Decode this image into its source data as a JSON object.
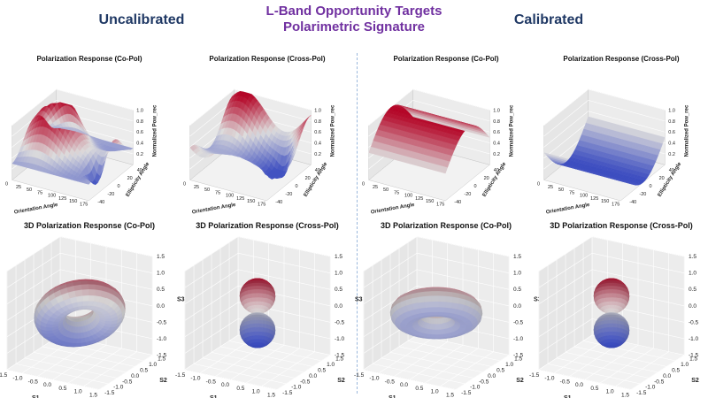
{
  "header": {
    "title_line1": "L-Band Opportunity Targets",
    "title_line2": "Polarimetric  Signature",
    "uncalibrated_label": "Uncalibrated",
    "calibrated_label": "Calibrated"
  },
  "colors": {
    "title": "#7030a0",
    "section_label": "#1f3864",
    "colormap_low": "#3b4cc0",
    "colormap_mid": "#dddcdc",
    "colormap_high": "#b40426",
    "divider": "#9bb8dc"
  },
  "chart_data": [
    {
      "id": "uncal_co_pol",
      "type": "surface3d",
      "group": "Uncalibrated",
      "title": "Polarization Response (Co-Pol)",
      "xlabel": "Orientation Angle",
      "ylabel": "Ellipticity Angle",
      "zlabel": "Normalized Pow_rec",
      "x_ticks": [
        "0",
        "25",
        "50",
        "75",
        "100",
        "125",
        "150",
        "175"
      ],
      "y_ticks": [
        "-40",
        "-20",
        "0",
        "20",
        "40"
      ],
      "z_ticks": [
        "0.2",
        "0.4",
        "0.6",
        "0.8",
        "1.0"
      ],
      "xlim": [
        0,
        180
      ],
      "ylim": [
        -45,
        45
      ],
      "zlim": [
        0,
        1
      ],
      "function": "uncal_co"
    },
    {
      "id": "uncal_cross_pol",
      "type": "surface3d",
      "group": "Uncalibrated",
      "title": "Polarization Response (Cross-Pol)",
      "xlabel": "Orientation Angle",
      "ylabel": "Ellipticity Angle",
      "zlabel": "Normalized Pow_rec",
      "x_ticks": [
        "0",
        "25",
        "50",
        "75",
        "100",
        "125",
        "150",
        "175"
      ],
      "y_ticks": [
        "-40",
        "-20",
        "0",
        "20",
        "40"
      ],
      "z_ticks": [
        "0.2",
        "0.4",
        "0.6",
        "0.8",
        "1.0"
      ],
      "xlim": [
        0,
        180
      ],
      "ylim": [
        -45,
        45
      ],
      "zlim": [
        0,
        1
      ],
      "function": "uncal_cross"
    },
    {
      "id": "cal_co_pol",
      "type": "surface3d",
      "group": "Calibrated",
      "title": "Polarization Response (Co-Pol)",
      "xlabel": "Orientation Angle",
      "ylabel": "Ellipticity Angle",
      "zlabel": "Normalized Pow_rec",
      "x_ticks": [
        "0",
        "25",
        "50",
        "75",
        "100",
        "125",
        "150",
        "175"
      ],
      "y_ticks": [
        "-40",
        "-20",
        "0",
        "20",
        "40"
      ],
      "z_ticks": [
        "0.2",
        "0.4",
        "0.6",
        "0.8",
        "1.0"
      ],
      "xlim": [
        0,
        180
      ],
      "ylim": [
        -45,
        45
      ],
      "zlim": [
        0,
        1
      ],
      "function": "cal_co"
    },
    {
      "id": "cal_cross_pol",
      "type": "surface3d",
      "group": "Calibrated",
      "title": "Polarization Response (Cross-Pol)",
      "xlabel": "Orientation Angle",
      "ylabel": "Ellipticity Angle",
      "zlabel": "Normalized Pow_rec",
      "x_ticks": [
        "0",
        "25",
        "50",
        "75",
        "100",
        "125",
        "150",
        "175"
      ],
      "y_ticks": [
        "-40",
        "-20",
        "0",
        "20",
        "40"
      ],
      "z_ticks": [
        "0.2",
        "0.4",
        "0.6",
        "0.8",
        "1.0"
      ],
      "xlim": [
        0,
        180
      ],
      "ylim": [
        -45,
        45
      ],
      "zlim": [
        0,
        1
      ],
      "function": "cal_cross"
    },
    {
      "id": "uncal_3d_co_pol",
      "type": "surface3d",
      "group": "Uncalibrated",
      "title": "3D Polarization Response (Co-Pol)",
      "xlabel": "S1",
      "ylabel": "S2",
      "zlabel": "S3",
      "x_ticks": [
        "-1.5",
        "-1.0",
        "-0.5",
        "0.0",
        "0.5",
        "1.0",
        "1.5"
      ],
      "y_ticks": [
        "-1.5",
        "-1.0",
        "-0.5",
        "0.0",
        "0.5",
        "1.0",
        "1.5"
      ],
      "z_ticks": [
        "-1.5",
        "-1.0",
        "-0.5",
        "0.0",
        "0.5",
        "1.0",
        "1.5"
      ],
      "xlim": [
        -1.5,
        1.5
      ],
      "ylim": [
        -1.5,
        1.5
      ],
      "zlim": [
        -1.5,
        1.5
      ],
      "shape": "tilted_torus"
    },
    {
      "id": "uncal_3d_cross_pol",
      "type": "surface3d",
      "group": "Uncalibrated",
      "title": "3D Polarization Response (Cross-Pol)",
      "xlabel": "S1",
      "ylabel": "S2",
      "zlabel": "S3",
      "x_ticks": [
        "-1.5",
        "-1.0",
        "-0.5",
        "0.0",
        "0.5",
        "1.0",
        "1.5"
      ],
      "y_ticks": [
        "-1.5",
        "-1.0",
        "-0.5",
        "0.0",
        "0.5",
        "1.0",
        "1.5"
      ],
      "z_ticks": [
        "-1.5",
        "-1.0",
        "-0.5",
        "0.0",
        "0.5",
        "1.0",
        "1.5"
      ],
      "xlim": [
        -1.5,
        1.5
      ],
      "ylim": [
        -1.5,
        1.5
      ],
      "zlim": [
        -1.5,
        1.5
      ],
      "shape": "two_spheres"
    },
    {
      "id": "cal_3d_co_pol",
      "type": "surface3d",
      "group": "Calibrated",
      "title": "3D Polarization Response (Co-Pol)",
      "xlabel": "S1",
      "ylabel": "S2",
      "zlabel": "S3",
      "x_ticks": [
        "-1.5",
        "-1.0",
        "-0.5",
        "0.0",
        "0.5",
        "1.0",
        "1.5"
      ],
      "y_ticks": [
        "-1.5",
        "-1.0",
        "-0.5",
        "0.0",
        "0.5",
        "1.0",
        "1.5"
      ],
      "z_ticks": [
        "-1.5",
        "-1.0",
        "-0.5",
        "0.0",
        "0.5",
        "1.0",
        "1.5"
      ],
      "xlim": [
        -1.5,
        1.5
      ],
      "ylim": [
        -1.5,
        1.5
      ],
      "zlim": [
        -1.5,
        1.5
      ],
      "shape": "torus"
    },
    {
      "id": "cal_3d_cross_pol",
      "type": "surface3d",
      "group": "Calibrated",
      "title": "3D Polarization Response (Cross-Pol)",
      "xlabel": "S1",
      "ylabel": "S2",
      "zlabel": "S3",
      "x_ticks": [
        "-1.5",
        "-1.0",
        "-0.5",
        "0.0",
        "0.5",
        "1.0",
        "1.5"
      ],
      "y_ticks": [
        "-1.5",
        "-1.0",
        "-0.5",
        "0.0",
        "0.5",
        "1.0",
        "1.5"
      ],
      "z_ticks": [
        "-1.5",
        "-1.0",
        "-0.5",
        "0.0",
        "0.5",
        "1.0",
        "1.5"
      ],
      "xlim": [
        -1.5,
        1.5
      ],
      "ylim": [
        -1.5,
        1.5
      ],
      "zlim": [
        -1.5,
        1.5
      ],
      "shape": "two_spheres"
    }
  ]
}
